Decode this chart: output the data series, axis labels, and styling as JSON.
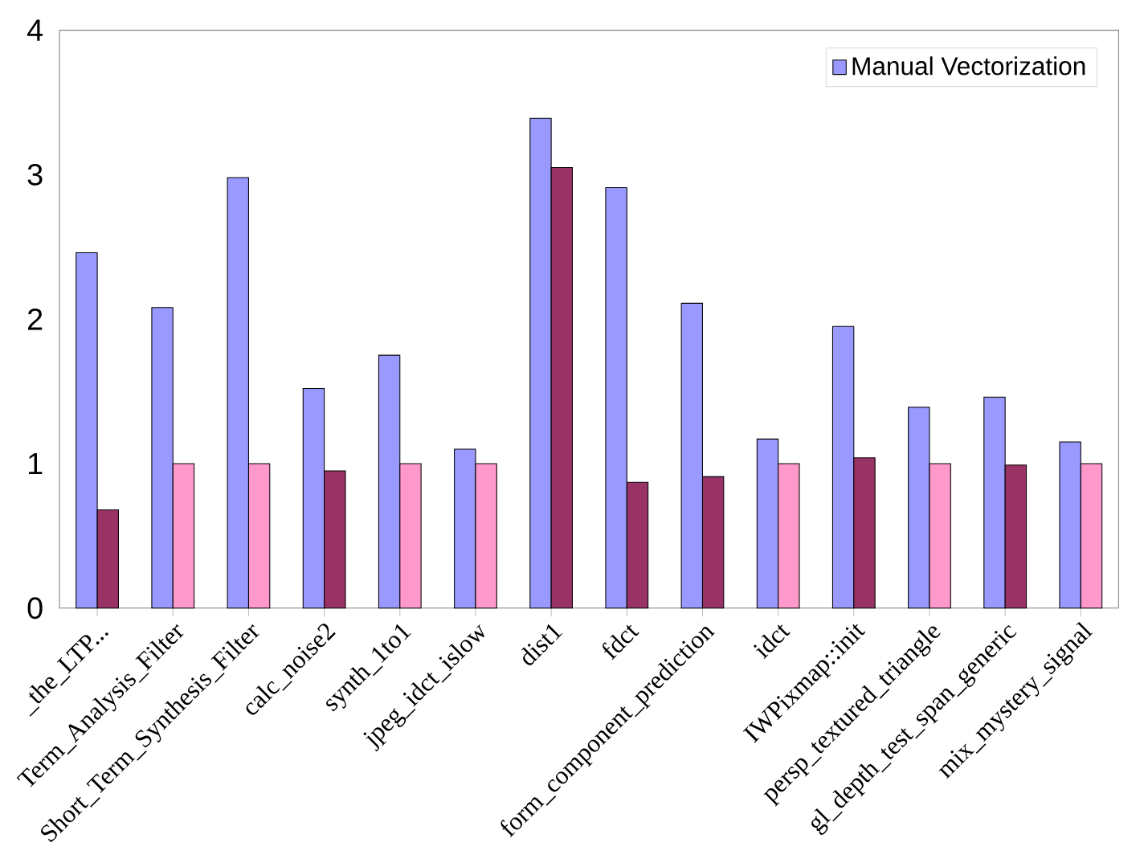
{
  "chart_data": {
    "type": "bar",
    "categories": [
      "_the_LTP...",
      "Term_Analysis_Filter",
      "Short_Term_Synthesis_Filter",
      "calc_noise2",
      "synth_1to1",
      "jpeg_idct_islow",
      "dist1",
      "fdct",
      "form_component_prediction",
      "idct",
      "IWPixmap::init",
      "persp_textured_triangle",
      "gl_depth_test_span_generic",
      "mix_mystery_signal"
    ],
    "series": [
      {
        "name": "Manual Vectorization",
        "color": "#9999ff",
        "values": [
          2.46,
          2.08,
          2.98,
          1.52,
          1.75,
          1.1,
          3.39,
          2.91,
          2.11,
          1.17,
          1.95,
          1.39,
          1.46,
          1.15
        ]
      },
      {
        "colors": [
          "#993366",
          "#ff99cc",
          "#ff99cc",
          "#993366",
          "#ff99cc",
          "#ff99cc",
          "#993366",
          "#993366",
          "#993366",
          "#ff99cc",
          "#993366",
          "#ff99cc",
          "#993366",
          "#ff99cc"
        ],
        "values": [
          0.68,
          1,
          1,
          0.95,
          1,
          1,
          3.05,
          0.87,
          0.91,
          1,
          1.04,
          1,
          0.99,
          1
        ]
      }
    ],
    "ylim": [
      0,
      4
    ],
    "yticks": [
      0,
      1,
      2,
      3,
      4
    ],
    "grid": false,
    "legend": "top right"
  }
}
